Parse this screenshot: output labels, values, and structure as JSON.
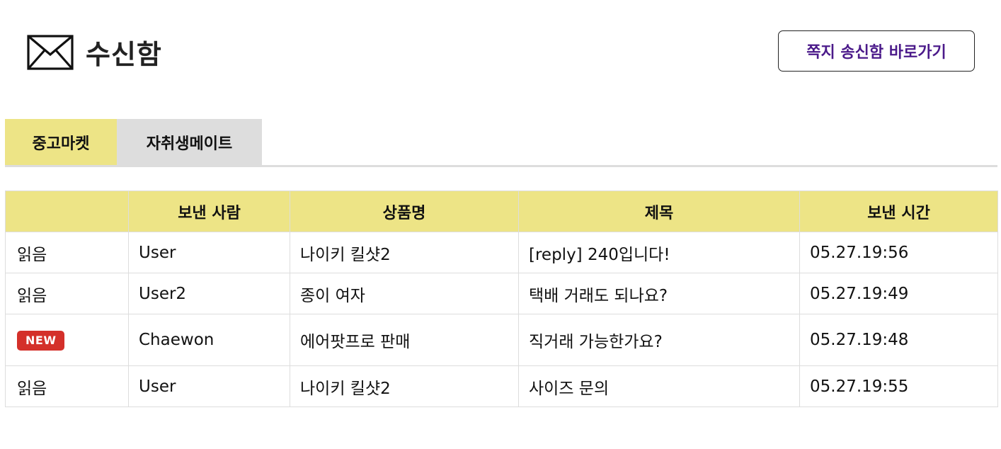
{
  "header": {
    "title": "수신함",
    "sent_box_button": "쪽지 송신함 바로가기",
    "icon": "mail-icon"
  },
  "tabs": [
    {
      "label": "중고마켓",
      "active": true
    },
    {
      "label": "자취생메이트",
      "active": false
    }
  ],
  "table": {
    "columns": [
      "",
      "보낸 사람",
      "상품명",
      "제목",
      "보낸 시간"
    ],
    "rows": [
      {
        "status": "읽음",
        "sender": "User",
        "product": "나이키 킬샷2",
        "subject": "[reply] 240입니다!",
        "time": "05.27.19:56"
      },
      {
        "status": "읽음",
        "sender": "User2",
        "product": "종이 여자",
        "subject": "택배 거래도 되나요?",
        "time": "05.27.19:49"
      },
      {
        "status": "NEW",
        "sender": "Chaewon",
        "product": "에어팟프로 판매",
        "subject": "직거래 가능한가요?",
        "time": "05.27.19:48"
      },
      {
        "status": "읽음",
        "sender": "User",
        "product": "나이키 킬샷2",
        "subject": "사이즈 문의",
        "time": "05.27.19:55"
      }
    ]
  },
  "colors": {
    "accent_yellow": "#ede486",
    "tab_inactive": "#dddddd",
    "button_text": "#4b1a8a",
    "new_badge": "#d4302a"
  }
}
